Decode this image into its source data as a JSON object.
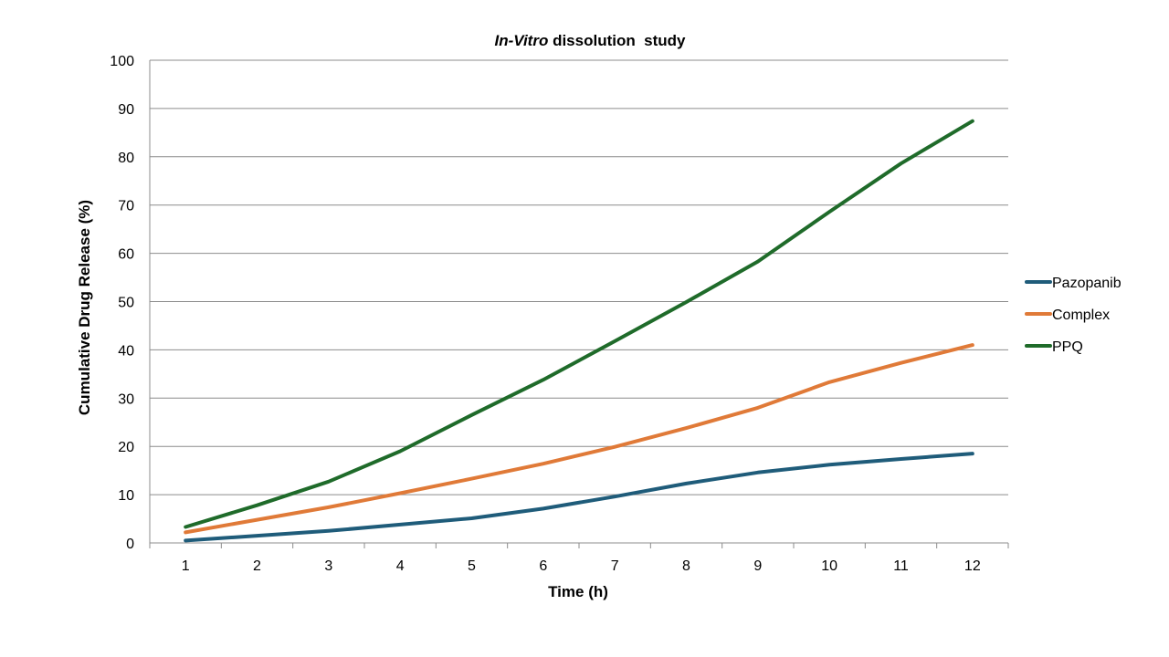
{
  "chart_data": {
    "type": "line",
    "title_prefix": "In-Vitro",
    "title_rest": " dissolution  study",
    "xlabel": "Time (h)",
    "ylabel": "Cumulative Drug Release (%)",
    "categories": [
      "1",
      "2",
      "3",
      "4",
      "5",
      "6",
      "7",
      "8",
      "9",
      "10",
      "11",
      "12"
    ],
    "ylim": [
      0,
      100
    ],
    "yticks": [
      "0",
      "10",
      "20",
      "30",
      "40",
      "50",
      "60",
      "70",
      "80",
      "90",
      "100"
    ],
    "grid": true,
    "legend_position": "right",
    "series": [
      {
        "name": "Pazopanib",
        "color": "#1f5c7a",
        "values": [
          0.5,
          1.5,
          2.5,
          3.8,
          5.1,
          7.1,
          9.6,
          12.3,
          14.6,
          16.2,
          17.4,
          18.5
        ]
      },
      {
        "name": "Complex",
        "color": "#e07a38",
        "values": [
          2.2,
          4.8,
          7.4,
          10.3,
          13.3,
          16.4,
          19.9,
          23.8,
          28.0,
          33.3,
          37.3,
          41.0
        ]
      },
      {
        "name": "PPQ",
        "color": "#1f6b2a",
        "values": [
          3.3,
          7.8,
          12.7,
          19.0,
          26.5,
          33.8,
          41.8,
          49.9,
          58.3,
          68.6,
          78.6,
          87.4
        ]
      }
    ]
  }
}
